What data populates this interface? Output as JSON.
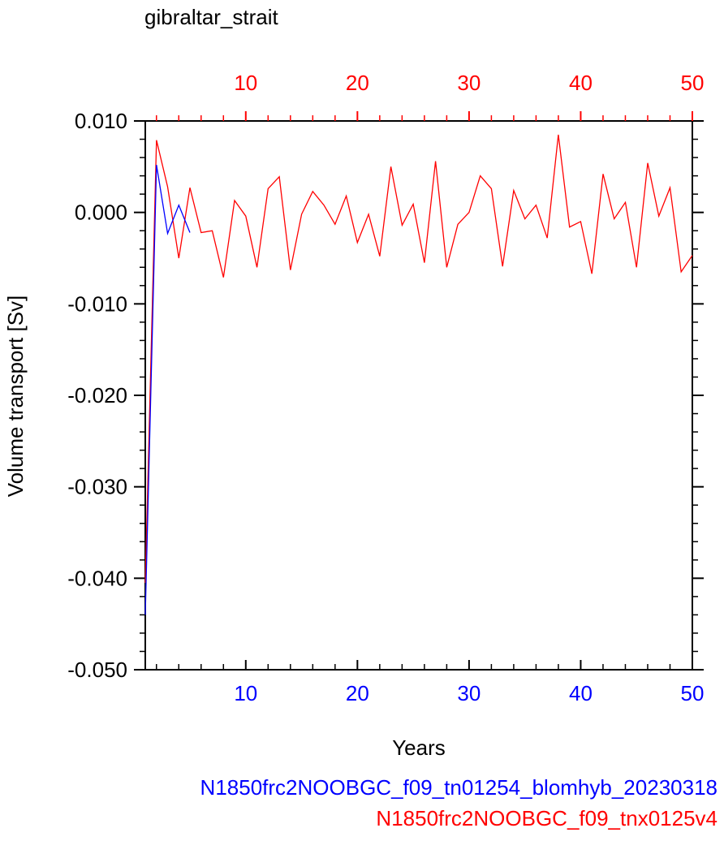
{
  "chart_data": {
    "type": "line",
    "title": "gibraltar_strait",
    "xlabel": "Years",
    "ylabel": "Volume transport [Sv]",
    "xlim": [
      1,
      50
    ],
    "ylim": [
      -0.05,
      0.01
    ],
    "ytick_labels": [
      "0.010",
      "0.000",
      "-0.010",
      "-0.020",
      "-0.030",
      "-0.040",
      "-0.050"
    ],
    "ytick_values": [
      0.01,
      0.0,
      -0.01,
      -0.02,
      -0.03,
      -0.04,
      -0.05
    ],
    "xtick_labels": [
      "10",
      "20",
      "30",
      "40",
      "50"
    ],
    "xtick_values": [
      10,
      20,
      30,
      40,
      50
    ],
    "legend_placement": "bottom-right",
    "series": [
      {
        "name": "N1850frc2NOOBGC_f09_tn01254_blomhyb_20230318",
        "color": "#0000ff",
        "x": [
          1,
          2,
          3,
          4,
          5
        ],
        "y": [
          -0.044,
          0.0052,
          -0.0023,
          0.0008,
          -0.0022
        ]
      },
      {
        "name": "N1850frc2NOOBGC_f09_tnx0125v4",
        "color": "#ff0000",
        "x": [
          1,
          2,
          3,
          4,
          5,
          6,
          7,
          8,
          9,
          10,
          11,
          12,
          13,
          14,
          15,
          16,
          17,
          18,
          19,
          20,
          21,
          22,
          23,
          24,
          25,
          26,
          27,
          28,
          29,
          30,
          31,
          32,
          33,
          34,
          35,
          36,
          37,
          38,
          39,
          40,
          41,
          42,
          43,
          44,
          45,
          46,
          47,
          48,
          49,
          50
        ],
        "y": [
          -0.0405,
          0.0079,
          0.0028,
          -0.005,
          0.0027,
          -0.0022,
          -0.002,
          -0.0071,
          0.0013,
          -0.0004,
          -0.006,
          0.0026,
          0.0039,
          -0.0063,
          -0.0002,
          0.0023,
          0.0008,
          -0.0013,
          0.0018,
          -0.0033,
          -0.0002,
          -0.0048,
          0.005,
          -0.0014,
          0.0009,
          -0.0055,
          0.0056,
          -0.006,
          -0.0013,
          0.0,
          0.004,
          0.0026,
          -0.0059,
          0.0024,
          -0.0007,
          0.0008,
          -0.0028,
          0.0085,
          -0.0016,
          -0.001,
          -0.0067,
          0.0042,
          -0.0007,
          0.0011,
          -0.006,
          0.0054,
          -0.0004,
          0.0027,
          -0.0065,
          -0.0047
        ]
      }
    ]
  }
}
